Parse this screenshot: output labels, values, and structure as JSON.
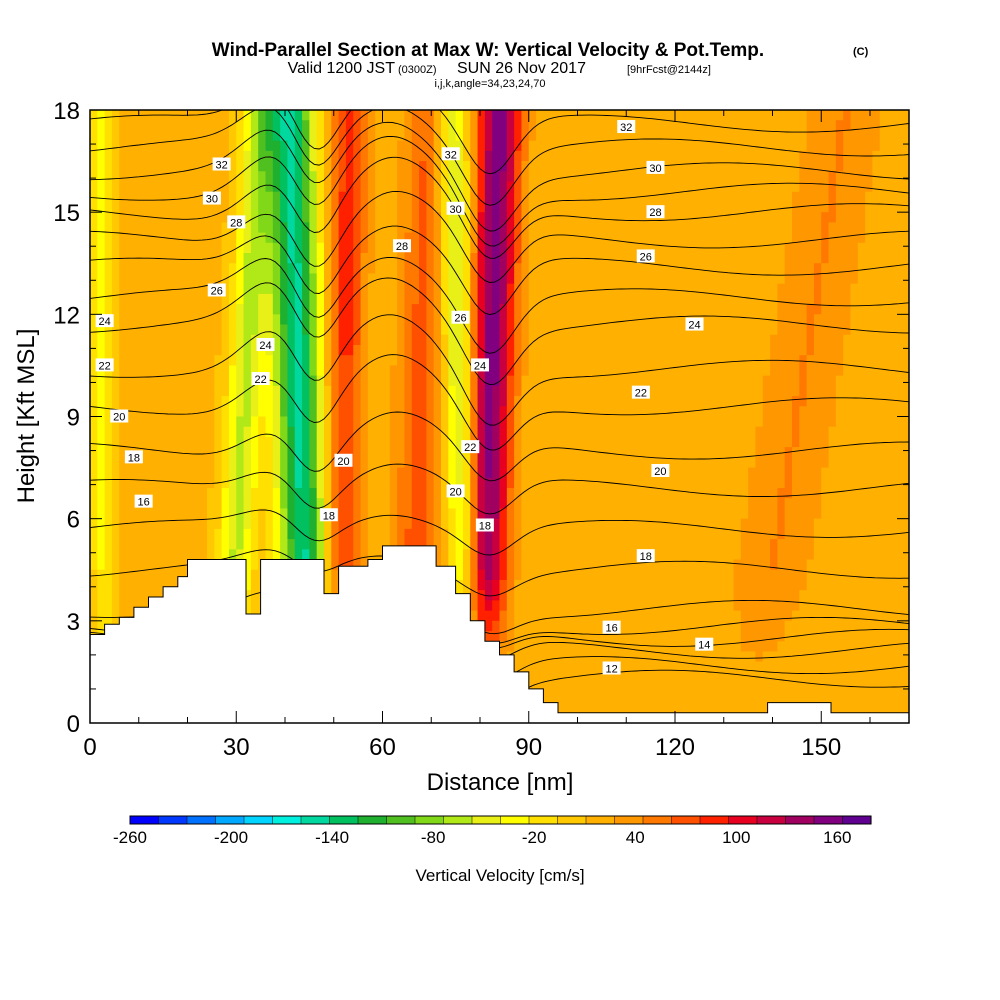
{
  "title": {
    "main": "Wind-Parallel Section at Max W: Vertical Velocity & Pot.Temp.",
    "unit_tag": "(C)",
    "valid_prefix": "Valid 1200 JST",
    "valid_zulu": "(0300Z)",
    "valid_date": "SUN 26 Nov 2017",
    "forecast": "[9hrFcst@2144z]",
    "indices": "i,j,k,angle=34,23,24,70"
  },
  "chart_data": {
    "type": "heatmap",
    "xlabel": "Distance [nm]",
    "ylabel": "Height [Kft MSL]",
    "xlim": [
      0,
      168
    ],
    "ylim": [
      0,
      18
    ],
    "x_ticks": [
      0,
      30,
      60,
      90,
      120,
      150
    ],
    "y_ticks": [
      0,
      3,
      6,
      9,
      12,
      15,
      18
    ],
    "colorbar": {
      "label": "Vertical Velocity [cm/s]",
      "range": [
        -260,
        180
      ],
      "tick_labels": [
        "-260",
        "-200",
        "-140",
        "-80",
        "-20",
        "40",
        "100",
        "160"
      ],
      "tick_values": [
        -260,
        -200,
        -140,
        -80,
        -20,
        40,
        100,
        160
      ],
      "colors": [
        "#0000ff",
        "#0038ff",
        "#0070ff",
        "#00a8ff",
        "#00d4ff",
        "#00f0e0",
        "#00d8a0",
        "#00c060",
        "#20b030",
        "#50c020",
        "#80d818",
        "#b0e818",
        "#e8f018",
        "#ffff00",
        "#ffe000",
        "#ffc800",
        "#ffb000",
        "#ff9800",
        "#ff7800",
        "#ff5000",
        "#ff2000",
        "#e80020",
        "#c80040",
        "#a00060",
        "#800080",
        "#600090"
      ]
    },
    "vertical_velocity_bands": [
      {
        "x_top": 35,
        "x_bottom": 28,
        "w": -75,
        "halfwidth": 3.5
      },
      {
        "x_top": 41,
        "x_bottom": 45,
        "w": -160,
        "halfwidth": 5.0
      },
      {
        "x_top": 53,
        "x_bottom": 51,
        "w": 70,
        "halfwidth": 4.0
      },
      {
        "x_top": 74,
        "x_bottom": 78,
        "w": -90,
        "halfwidth": 3.5
      },
      {
        "x_top": 84,
        "x_bottom": 80,
        "w": 140,
        "halfwidth": 4.5
      },
      {
        "x_top": 70,
        "x_bottom": 66,
        "w": 55,
        "halfwidth": 5.0
      },
      {
        "x_top": 2,
        "x_bottom": 3,
        "w": -40,
        "halfwidth": 2.5
      },
      {
        "x_top": 155,
        "x_bottom": 135,
        "w": 30,
        "halfwidth": 8.0
      }
    ],
    "terrain": [
      [
        0,
        2.6
      ],
      [
        3,
        2.6
      ],
      [
        3,
        2.9
      ],
      [
        6,
        2.9
      ],
      [
        6,
        3.1
      ],
      [
        9,
        3.1
      ],
      [
        9,
        3.4
      ],
      [
        12,
        3.4
      ],
      [
        12,
        3.7
      ],
      [
        15,
        3.7
      ],
      [
        15,
        4.0
      ],
      [
        18,
        4.0
      ],
      [
        18,
        4.3
      ],
      [
        20,
        4.3
      ],
      [
        20,
        4.8
      ],
      [
        32,
        4.8
      ],
      [
        32,
        3.2
      ],
      [
        35,
        3.2
      ],
      [
        35,
        4.8
      ],
      [
        48,
        4.8
      ],
      [
        48,
        3.8
      ],
      [
        51,
        3.8
      ],
      [
        51,
        4.6
      ],
      [
        57,
        4.6
      ],
      [
        57,
        4.8
      ],
      [
        60,
        4.8
      ],
      [
        60,
        5.2
      ],
      [
        71,
        5.2
      ],
      [
        71,
        4.6
      ],
      [
        75,
        4.6
      ],
      [
        75,
        3.8
      ],
      [
        78,
        3.8
      ],
      [
        78,
        3.0
      ],
      [
        81,
        3.0
      ],
      [
        81,
        2.4
      ],
      [
        84,
        2.4
      ],
      [
        84,
        2.0
      ],
      [
        87,
        2.0
      ],
      [
        87,
        1.5
      ],
      [
        90,
        1.5
      ],
      [
        90,
        1.0
      ],
      [
        93,
        1.0
      ],
      [
        93,
        0.6
      ],
      [
        96,
        0.6
      ],
      [
        96,
        0.3
      ],
      [
        139,
        0.3
      ],
      [
        139,
        0.6
      ],
      [
        152,
        0.6
      ],
      [
        152,
        0.3
      ],
      [
        168,
        0.3
      ]
    ],
    "isentropes": [
      {
        "theta": 12,
        "base_height": 1.3
      },
      {
        "theta": 13,
        "base_height": 1.7
      },
      {
        "theta": 14,
        "base_height": 2.15
      },
      {
        "theta": 15,
        "base_height": 2.5
      },
      {
        "theta": 16,
        "base_height": 2.85
      },
      {
        "theta": 17,
        "base_height": 3.35
      },
      {
        "theta": 18,
        "base_height": 4.5
      },
      {
        "theta": 19,
        "base_height": 5.7
      },
      {
        "theta": 20,
        "base_height": 6.9
      },
      {
        "theta": 21,
        "base_height": 8.0
      },
      {
        "theta": 22,
        "base_height": 9.3
      },
      {
        "theta": 23,
        "base_height": 10.4
      },
      {
        "theta": 24,
        "base_height": 11.7
      },
      {
        "theta": 25,
        "base_height": 12.5
      },
      {
        "theta": 26,
        "base_height": 13.4
      },
      {
        "theta": 27,
        "base_height": 14.2
      },
      {
        "theta": 28,
        "base_height": 15.0
      },
      {
        "theta": 29,
        "base_height": 15.6
      },
      {
        "theta": 30,
        "base_height": 16.2
      },
      {
        "theta": 31,
        "base_height": 16.9
      },
      {
        "theta": 32,
        "base_height": 17.6
      }
    ],
    "contour_labels": [
      {
        "text": "32",
        "x": 27,
        "y": 16.4
      },
      {
        "text": "30",
        "x": 25,
        "y": 15.4
      },
      {
        "text": "28",
        "x": 30,
        "y": 14.7
      },
      {
        "text": "26",
        "x": 26,
        "y": 12.7
      },
      {
        "text": "24",
        "x": 3,
        "y": 11.8
      },
      {
        "text": "22",
        "x": 3,
        "y": 10.5
      },
      {
        "text": "20",
        "x": 6,
        "y": 9.0
      },
      {
        "text": "18",
        "x": 9,
        "y": 7.8
      },
      {
        "text": "16",
        "x": 11,
        "y": 6.5
      },
      {
        "text": "24",
        "x": 36,
        "y": 11.1
      },
      {
        "text": "22",
        "x": 35,
        "y": 10.1
      },
      {
        "text": "20",
        "x": 52,
        "y": 7.7
      },
      {
        "text": "18",
        "x": 49,
        "y": 6.1
      },
      {
        "text": "32",
        "x": 74,
        "y": 16.7
      },
      {
        "text": "30",
        "x": 75,
        "y": 15.1
      },
      {
        "text": "28",
        "x": 64,
        "y": 14.0
      },
      {
        "text": "26",
        "x": 76,
        "y": 11.9
      },
      {
        "text": "24",
        "x": 80,
        "y": 10.5
      },
      {
        "text": "22",
        "x": 78,
        "y": 8.1
      },
      {
        "text": "20",
        "x": 75,
        "y": 6.8
      },
      {
        "text": "18",
        "x": 81,
        "y": 5.8
      },
      {
        "text": "32",
        "x": 110,
        "y": 17.5
      },
      {
        "text": "30",
        "x": 116,
        "y": 16.3
      },
      {
        "text": "28",
        "x": 116,
        "y": 15.0
      },
      {
        "text": "26",
        "x": 114,
        "y": 13.7
      },
      {
        "text": "24",
        "x": 124,
        "y": 11.7
      },
      {
        "text": "22",
        "x": 113,
        "y": 9.7
      },
      {
        "text": "20",
        "x": 117,
        "y": 7.4
      },
      {
        "text": "18",
        "x": 114,
        "y": 4.9
      },
      {
        "text": "16",
        "x": 107,
        "y": 2.8
      },
      {
        "text": "14",
        "x": 126,
        "y": 2.3
      },
      {
        "text": "12",
        "x": 107,
        "y": 1.6
      }
    ]
  }
}
